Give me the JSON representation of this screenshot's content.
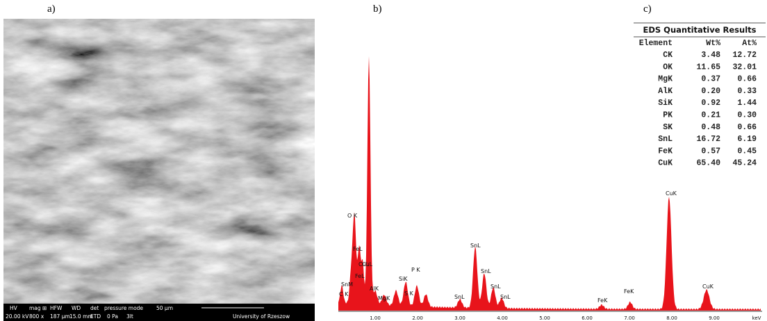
{
  "panels": {
    "a": {
      "label": "a)",
      "info_bar": {
        "headers": [
          "HV",
          "mag ⊞",
          "HFW",
          "WD",
          "det",
          "pressure mode",
          "50 µm"
        ],
        "values": [
          "20.00 kV",
          "800 x",
          "187 µm",
          "15.0 mm",
          "ETD",
          "0 Pa",
          "3lt",
          "University of Rzeszow"
        ]
      }
    },
    "b": {
      "label": "b)",
      "peak_labels": [
        "C K",
        "SnM",
        "O K",
        "FeL",
        "CuL",
        "FeL",
        "CuL",
        "MgK",
        "AlK",
        "SiK",
        "P K",
        "S K",
        "SnL",
        "SnL",
        "SnL",
        "SnL",
        "SnL",
        "FeK",
        "FeK",
        "CuK",
        "CuK"
      ],
      "x_ticks": [
        "1.00",
        "2.00",
        "3.00",
        "4.00",
        "5.00",
        "6.00",
        "7.00",
        "8.00",
        "9.00",
        "keV"
      ]
    },
    "c": {
      "label": "c)",
      "title": "EDS Quantitative Results",
      "columns": [
        "Element",
        "Wt%",
        "At%"
      ],
      "rows": [
        [
          "CK",
          "3.48",
          "12.72"
        ],
        [
          "OK",
          "11.65",
          "32.01"
        ],
        [
          "MgK",
          "0.37",
          "0.66"
        ],
        [
          "AlK",
          "0.20",
          "0.33"
        ],
        [
          "SiK",
          "0.92",
          "1.44"
        ],
        [
          "PK",
          "0.21",
          "0.30"
        ],
        [
          "SK",
          "0.48",
          "0.66"
        ],
        [
          "SnL",
          "16.72",
          "6.19"
        ],
        [
          "FeK",
          "0.57",
          "0.45"
        ],
        [
          "CuK",
          "65.40",
          "45.24"
        ]
      ]
    }
  }
}
